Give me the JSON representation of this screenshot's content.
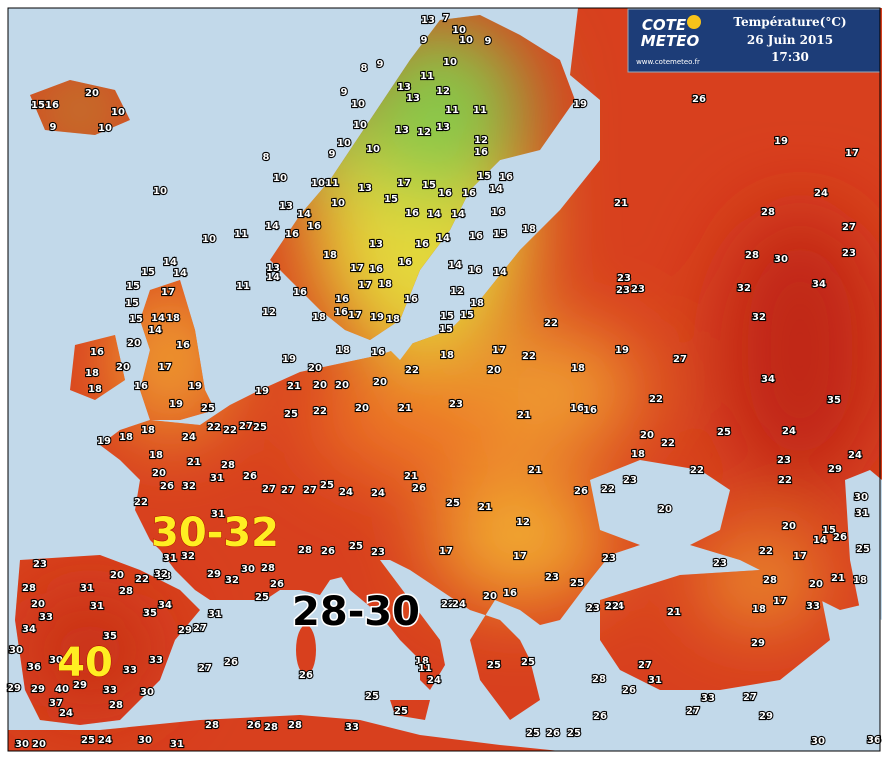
{
  "header": {
    "logo_top": "COTE",
    "logo_bottom": "METEO",
    "site": "www.cotemeteo.fr",
    "title": "Température(°C)",
    "date": "26 Juin 2015",
    "time": "17:30"
  },
  "labels": [
    "30-32",
    "28-30",
    "40"
  ],
  "stations": [
    15,
    16,
    20,
    10,
    9,
    10,
    13,
    7,
    10,
    10,
    9,
    9,
    8,
    9,
    9,
    10,
    13,
    12,
    11,
    10,
    13,
    11,
    11,
    19,
    26,
    10,
    13,
    12,
    13,
    12,
    9,
    10,
    10,
    8,
    16,
    17,
    19,
    10,
    10,
    11,
    13,
    17,
    15,
    16,
    15,
    16,
    10,
    10,
    15,
    16,
    14,
    21,
    24,
    13,
    14,
    16,
    16,
    14,
    14,
    16,
    28,
    18,
    11,
    10,
    14,
    16,
    13,
    16,
    14,
    16,
    15,
    28,
    30,
    27,
    23,
    13,
    14,
    18,
    17,
    16,
    16,
    14,
    16,
    14,
    23,
    23,
    23,
    32,
    34,
    15,
    14,
    15,
    14,
    11,
    16,
    16,
    17,
    18,
    16,
    12,
    18,
    15,
    17,
    12,
    18,
    16,
    17,
    19,
    18,
    15,
    15,
    22,
    32,
    14,
    15,
    20,
    18,
    16,
    16,
    20,
    14,
    19,
    20,
    18,
    16,
    15,
    18,
    17,
    22,
    19,
    27,
    34,
    18,
    18,
    19,
    21,
    20,
    20,
    20,
    22,
    20,
    18,
    16,
    17,
    19,
    25,
    35,
    19,
    22,
    24,
    23,
    19,
    18,
    18,
    18,
    20,
    21,
    22,
    25,
    27,
    25,
    22,
    20,
    21,
    21,
    16,
    16,
    22,
    25,
    24,
    20,
    22,
    18,
    22,
    23,
    22,
    29,
    24,
    23,
    21,
    31,
    32,
    26,
    22,
    31,
    28,
    26,
    27,
    27,
    27,
    25,
    24,
    24,
    21,
    26,
    25,
    21,
    26,
    22,
    20,
    20,
    30,
    31,
    12,
    15,
    14,
    26,
    25,
    28,
    26,
    25,
    23,
    17,
    17,
    23,
    22,
    17,
    23,
    31,
    32,
    28,
    20,
    22,
    32,
    29,
    28,
    30,
    26,
    32,
    25,
    23,
    28,
    31,
    28,
    35,
    34,
    31,
    29,
    27,
    20,
    31,
    33,
    34,
    35,
    20,
    22,
    24,
    16,
    23,
    25,
    23,
    24,
    22,
    21,
    18,
    17,
    33,
    28,
    20,
    21,
    18,
    30,
    36,
    30,
    33,
    27,
    26,
    26,
    18,
    11,
    24,
    25,
    25,
    28,
    27,
    31,
    29,
    29,
    40,
    33,
    30,
    29,
    37,
    24,
    29,
    28,
    33,
    28,
    26,
    28,
    28,
    33,
    25,
    25,
    25,
    26,
    25,
    26,
    36,
    30,
    31,
    30,
    25,
    24,
    20,
    30,
    27,
    33,
    29,
    27,
    26
  ]
}
